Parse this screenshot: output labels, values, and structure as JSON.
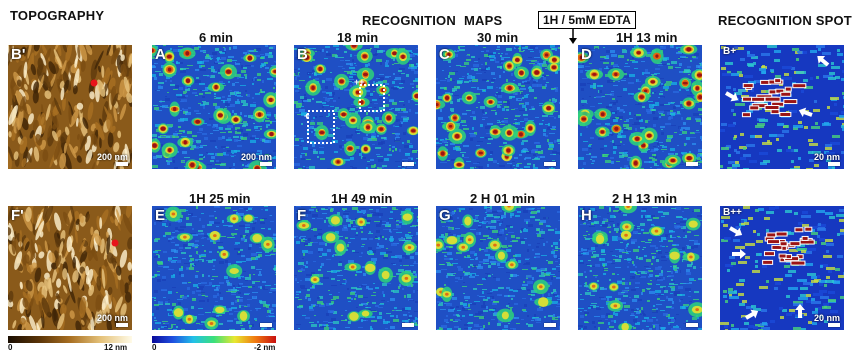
{
  "headers": {
    "topography": "TOPOGRAPHY",
    "recognition": "RECOGNITION",
    "maps": "MAPS",
    "spots": "RECOGNITION SPOTS",
    "edta": "1H / 5mM EDTA"
  },
  "row1": [
    {
      "label": "A",
      "time": "6 min",
      "scale": "200 nm"
    },
    {
      "label": "B",
      "time": "18 min",
      "scale": ""
    },
    {
      "label": "C",
      "time": "30 min",
      "scale": ""
    },
    {
      "label": "D",
      "time": "1H 13 min",
      "scale": ""
    }
  ],
  "row2": [
    {
      "label": "E",
      "time": "1H 25 min",
      "scale": ""
    },
    {
      "label": "F",
      "time": "1H 49 min",
      "scale": ""
    },
    {
      "label": "G",
      "time": "2 H 01 min",
      "scale": ""
    },
    {
      "label": "H",
      "time": "2 H 13 min",
      "scale": ""
    }
  ],
  "topo": [
    {
      "label": "B'",
      "scale": "200 nm"
    },
    {
      "label": "F'",
      "scale": "200 nm"
    }
  ],
  "spots": [
    {
      "label": "B+",
      "scale": "20 nm"
    },
    {
      "label": "B++",
      "scale": "20 nm"
    }
  ],
  "colorbars": {
    "topo": {
      "min": "0",
      "max": "12 nm"
    },
    "maps": {
      "min": "0",
      "max": "-2 nm"
    }
  },
  "colors": {
    "map_bg": "#1f4fc4",
    "hot": "#9b1414",
    "topo_bg": "#8a5a1a"
  }
}
